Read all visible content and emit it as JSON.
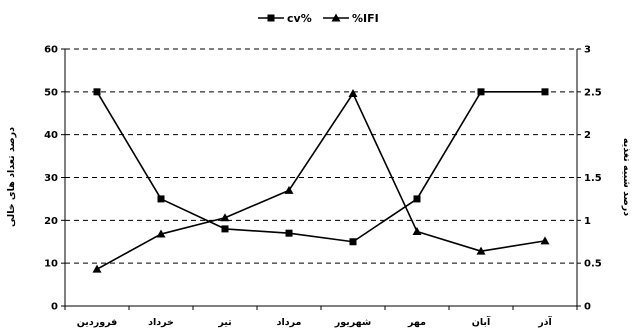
{
  "chart_data": {
    "type": "line",
    "categories": [
      "فروردین",
      "خرداد",
      "تیر",
      "مرداد",
      "شهریور",
      "مهر",
      "آبان",
      "آذر"
    ],
    "series": [
      {
        "name": "cv%",
        "axis": "left",
        "marker": "square",
        "values": [
          50,
          25,
          18,
          17,
          15,
          25,
          50,
          50
        ]
      },
      {
        "name": "%IFI",
        "axis": "right",
        "marker": "triangle",
        "values": [
          0.43,
          0.84,
          1.03,
          1.35,
          2.48,
          0.87,
          0.64,
          0.76
        ]
      }
    ],
    "ylabel": "درصد تعداد های خالی",
    "y2label": "درصد شبیه تغذیه",
    "ylim": [
      0,
      60
    ],
    "y2lim": [
      0,
      3
    ],
    "yticks": [
      "0",
      "10",
      "20",
      "30",
      "40",
      "50",
      "60"
    ],
    "y2ticks": [
      "0",
      "0.5",
      "1",
      "1.5",
      "2",
      "2.5",
      "3"
    ],
    "grid": true,
    "legend": "top-center",
    "line_color": "#000000"
  }
}
